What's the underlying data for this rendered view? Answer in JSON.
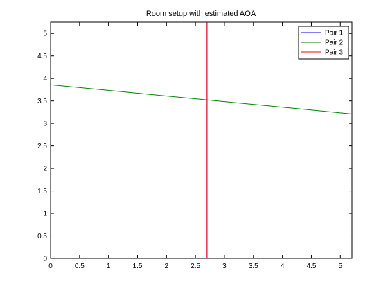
{
  "chart_data": {
    "type": "line",
    "title": "Room setup with estimated AOA",
    "xlabel": "",
    "ylabel": "",
    "xlim": [
      0,
      5.2
    ],
    "ylim": [
      0,
      5.25
    ],
    "x_ticks": [
      "0",
      "0.5",
      "1",
      "1.5",
      "2",
      "2.5",
      "3",
      "3.5",
      "4",
      "4.5",
      "5"
    ],
    "y_ticks": [
      "0",
      "0.5",
      "1",
      "1.5",
      "2",
      "2.5",
      "3",
      "3.5",
      "4",
      "4.5",
      "5"
    ],
    "grid": false,
    "legend_position": "top-right",
    "series": [
      {
        "name": "Pair 1",
        "color": "#0000ff",
        "points": [
          [
            2.7,
            0
          ],
          [
            2.7,
            5.25
          ]
        ]
      },
      {
        "name": "Pair 2",
        "color": "#008000",
        "points": [
          [
            0,
            3.86
          ],
          [
            5.2,
            3.21
          ]
        ]
      },
      {
        "name": "Pair 3",
        "color": "#ff0000",
        "points": [
          [
            2.7,
            0
          ],
          [
            2.7,
            5.25
          ]
        ]
      }
    ]
  }
}
